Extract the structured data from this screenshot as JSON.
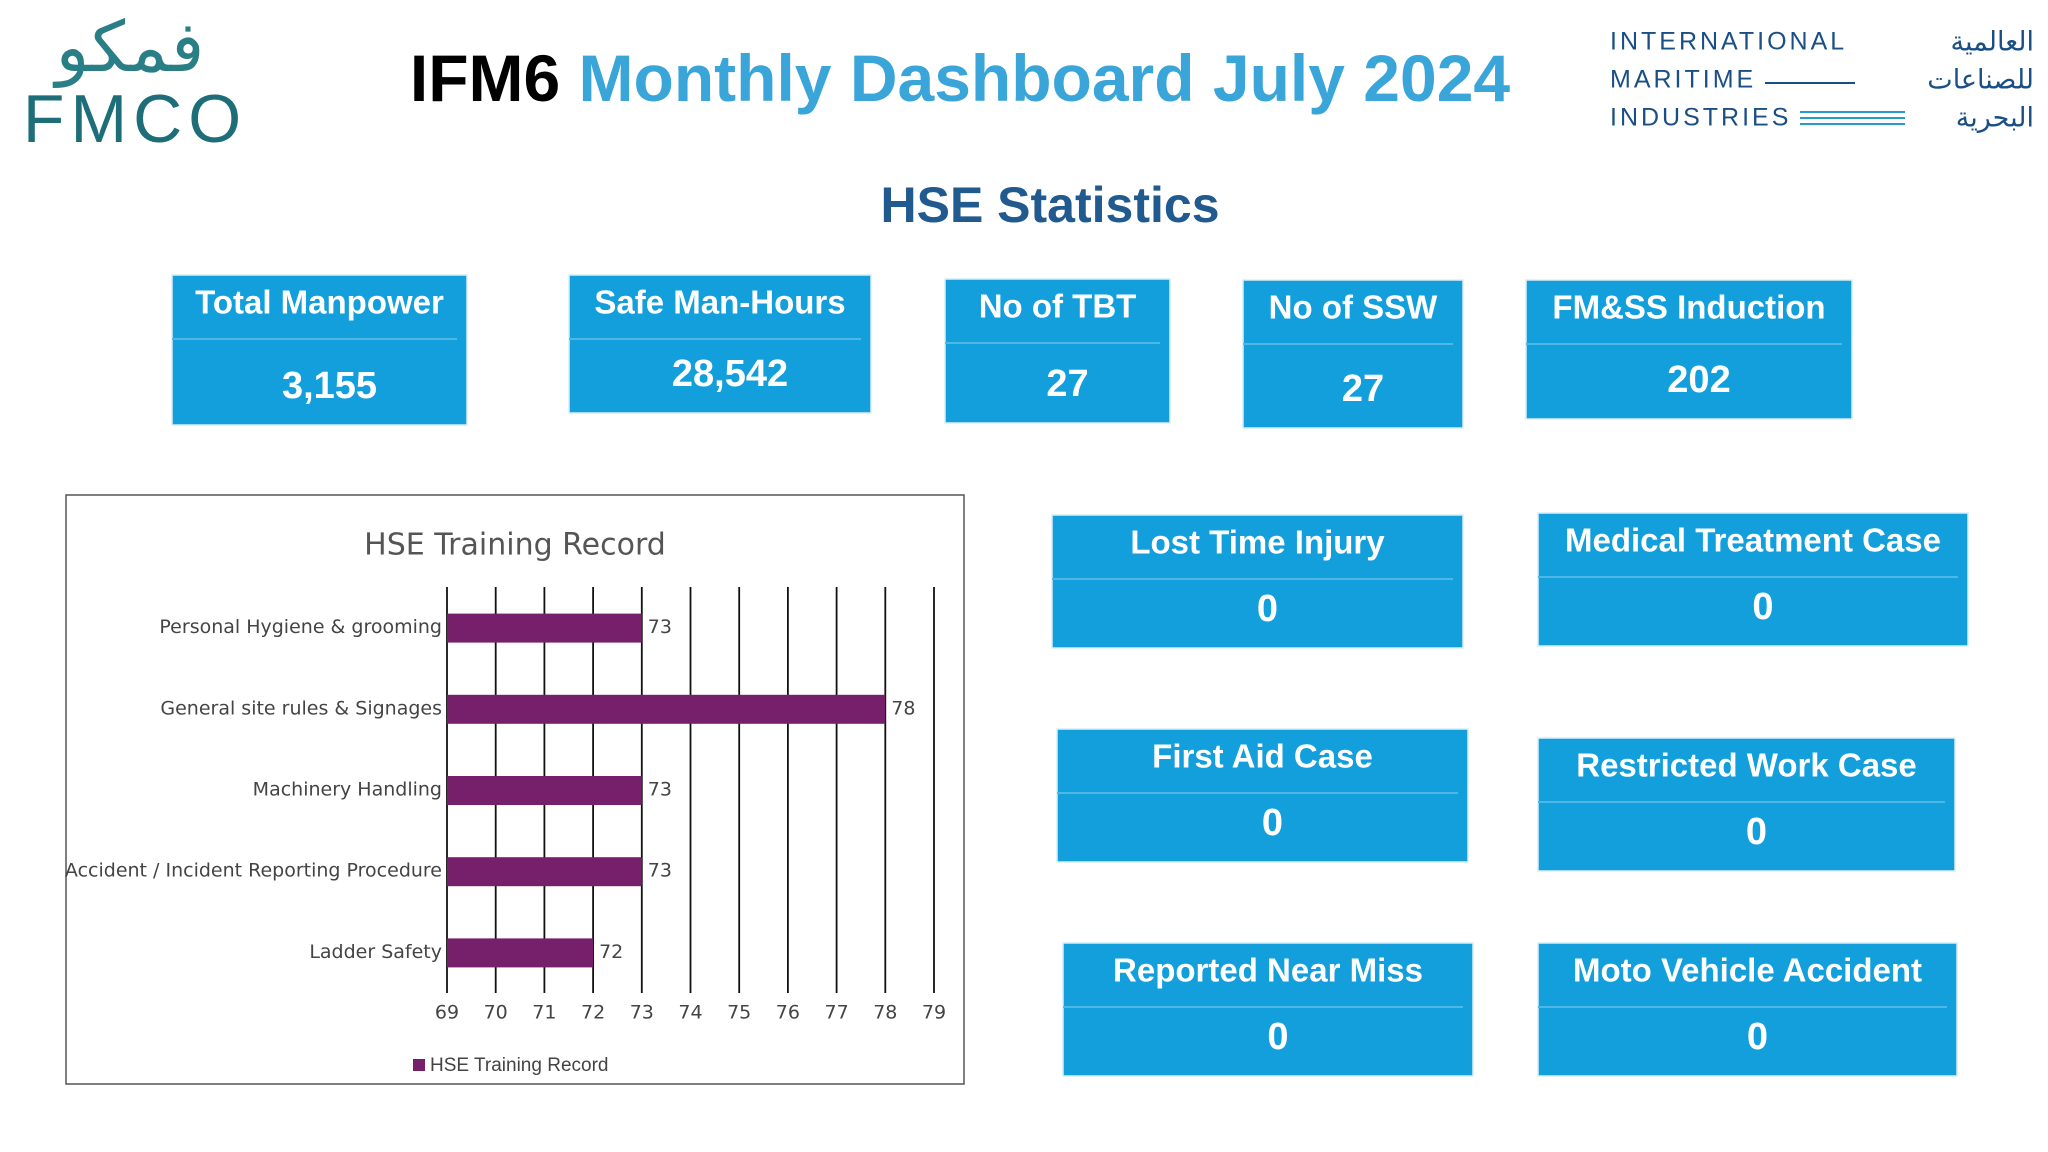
{
  "header": {
    "logo_arabic": "فمكو",
    "logo_latin": "FMCO",
    "title_prefix": "IFM6",
    "title_main": "Monthly Dashboard July 2024",
    "partner_logo": {
      "english": [
        "INTERNATIONAL",
        "MARITIME",
        "INDUSTRIES"
      ],
      "arabic": [
        "العالمية",
        "للصناعات",
        "البحرية"
      ]
    }
  },
  "section_title": "HSE Statistics",
  "stats": [
    {
      "label": "Total Manpower",
      "value": "3,155"
    },
    {
      "label": "Safe Man-Hours",
      "value": "28,542"
    },
    {
      "label": "No of TBT",
      "value": "27"
    },
    {
      "label": "No of SSW",
      "value": "27"
    },
    {
      "label": "FM&SS Induction",
      "value": "202"
    },
    {
      "label": "Lost Time Injury",
      "value": "0"
    },
    {
      "label": "Medical Treatment Case",
      "value": "0"
    },
    {
      "label": "First Aid  Case",
      "value": "0"
    },
    {
      "label": "Restricted Work Case",
      "value": "0"
    },
    {
      "label": "Reported Near Miss",
      "value": "0"
    },
    {
      "label": "Moto Vehicle Accident",
      "value": "0"
    }
  ],
  "chart_data": {
    "type": "hbar",
    "title": "HSE Training Record",
    "categories": [
      "Personal Hygiene & grooming",
      "General site rules & Signages",
      "Machinery Handling",
      "Accident / Incident Reporting Procedure",
      "Ladder Safety"
    ],
    "series": [
      {
        "name": "HSE Training Record",
        "color": "#76206b",
        "values": [
          73,
          78,
          73,
          73,
          72
        ]
      }
    ],
    "xlim": [
      69,
      79
    ],
    "xticks": [
      69,
      70,
      71,
      72,
      73,
      74,
      75,
      76,
      77,
      78,
      79
    ],
    "grid": true,
    "legend": "bottom"
  }
}
